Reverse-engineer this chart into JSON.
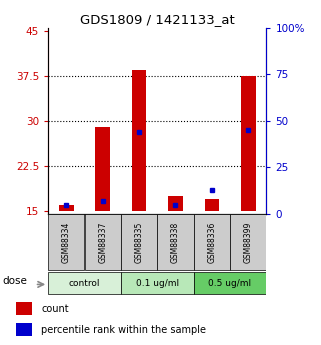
{
  "title": "GDS1809 / 1421133_at",
  "samples": [
    "GSM88334",
    "GSM88337",
    "GSM88335",
    "GSM88338",
    "GSM88336",
    "GSM88399"
  ],
  "groups": [
    {
      "label": "control",
      "color": "#d8f0d8",
      "indices": [
        0,
        1
      ]
    },
    {
      "label": "0.1 ug/ml",
      "color": "#b8e8b8",
      "indices": [
        2,
        3
      ]
    },
    {
      "label": "0.5 ug/ml",
      "color": "#66cc66",
      "indices": [
        4,
        5
      ]
    }
  ],
  "red_bottom": [
    15.0,
    15.0,
    15.0,
    15.0,
    15.0,
    15.0
  ],
  "red_top": [
    16.0,
    29.0,
    38.5,
    17.5,
    17.0,
    37.5
  ],
  "blue_val": [
    5.0,
    7.0,
    44.0,
    5.0,
    13.0,
    45.0
  ],
  "ylim_left": [
    14.5,
    45.5
  ],
  "ylim_right": [
    0,
    100
  ],
  "yticks_left": [
    15,
    22.5,
    30,
    37.5,
    45
  ],
  "yticks_right": [
    0,
    25,
    50,
    75,
    100
  ],
  "left_tick_labels": [
    "15",
    "22.5",
    "30",
    "37.5",
    "45"
  ],
  "right_tick_labels": [
    "0",
    "25",
    "50",
    "75",
    "100%"
  ],
  "red_color": "#cc0000",
  "blue_color": "#0000cc",
  "bg_color": "#ffffff",
  "bar_width": 0.4,
  "dose_label": "dose",
  "legend_count": "count",
  "legend_pct": "percentile rank within the sample",
  "grid_yticks": [
    22.5,
    30,
    37.5
  ]
}
